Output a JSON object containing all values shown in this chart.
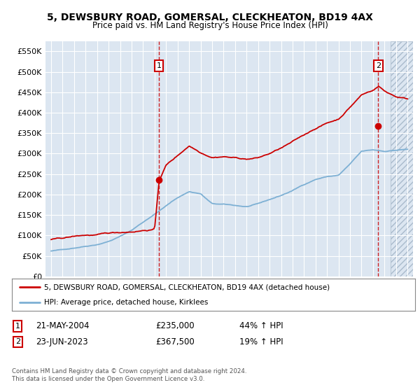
{
  "title": "5, DEWSBURY ROAD, GOMERSAL, CLECKHEATON, BD19 4AX",
  "subtitle": "Price paid vs. HM Land Registry's House Price Index (HPI)",
  "legend_label_red": "5, DEWSBURY ROAD, GOMERSAL, CLECKHEATON, BD19 4AX (detached house)",
  "legend_label_blue": "HPI: Average price, detached house, Kirklees",
  "annotation1_date": "21-MAY-2004",
  "annotation1_price": "£235,000",
  "annotation1_hpi": "44% ↑ HPI",
  "annotation2_date": "23-JUN-2023",
  "annotation2_price": "£367,500",
  "annotation2_hpi": "19% ↑ HPI",
  "footer": "Contains HM Land Registry data © Crown copyright and database right 2024.\nThis data is licensed under the Open Government Licence v3.0.",
  "ylim": [
    0,
    575000
  ],
  "yticks": [
    0,
    50000,
    100000,
    150000,
    200000,
    250000,
    300000,
    350000,
    400000,
    450000,
    500000,
    550000
  ],
  "ytick_labels": [
    "£0",
    "£50K",
    "£100K",
    "£150K",
    "£200K",
    "£250K",
    "£300K",
    "£350K",
    "£400K",
    "£450K",
    "£500K",
    "£550K"
  ],
  "background_color": "#dce6f1",
  "grid_color": "#ffffff",
  "red_color": "#cc0000",
  "blue_color": "#7db0d4",
  "t1_x": 2004.375,
  "t1_y": 235000,
  "t2_x": 2023.458,
  "t2_y": 367500,
  "hatch_start": 2024.5,
  "xmin": 1994.5,
  "xmax": 2026.5
}
